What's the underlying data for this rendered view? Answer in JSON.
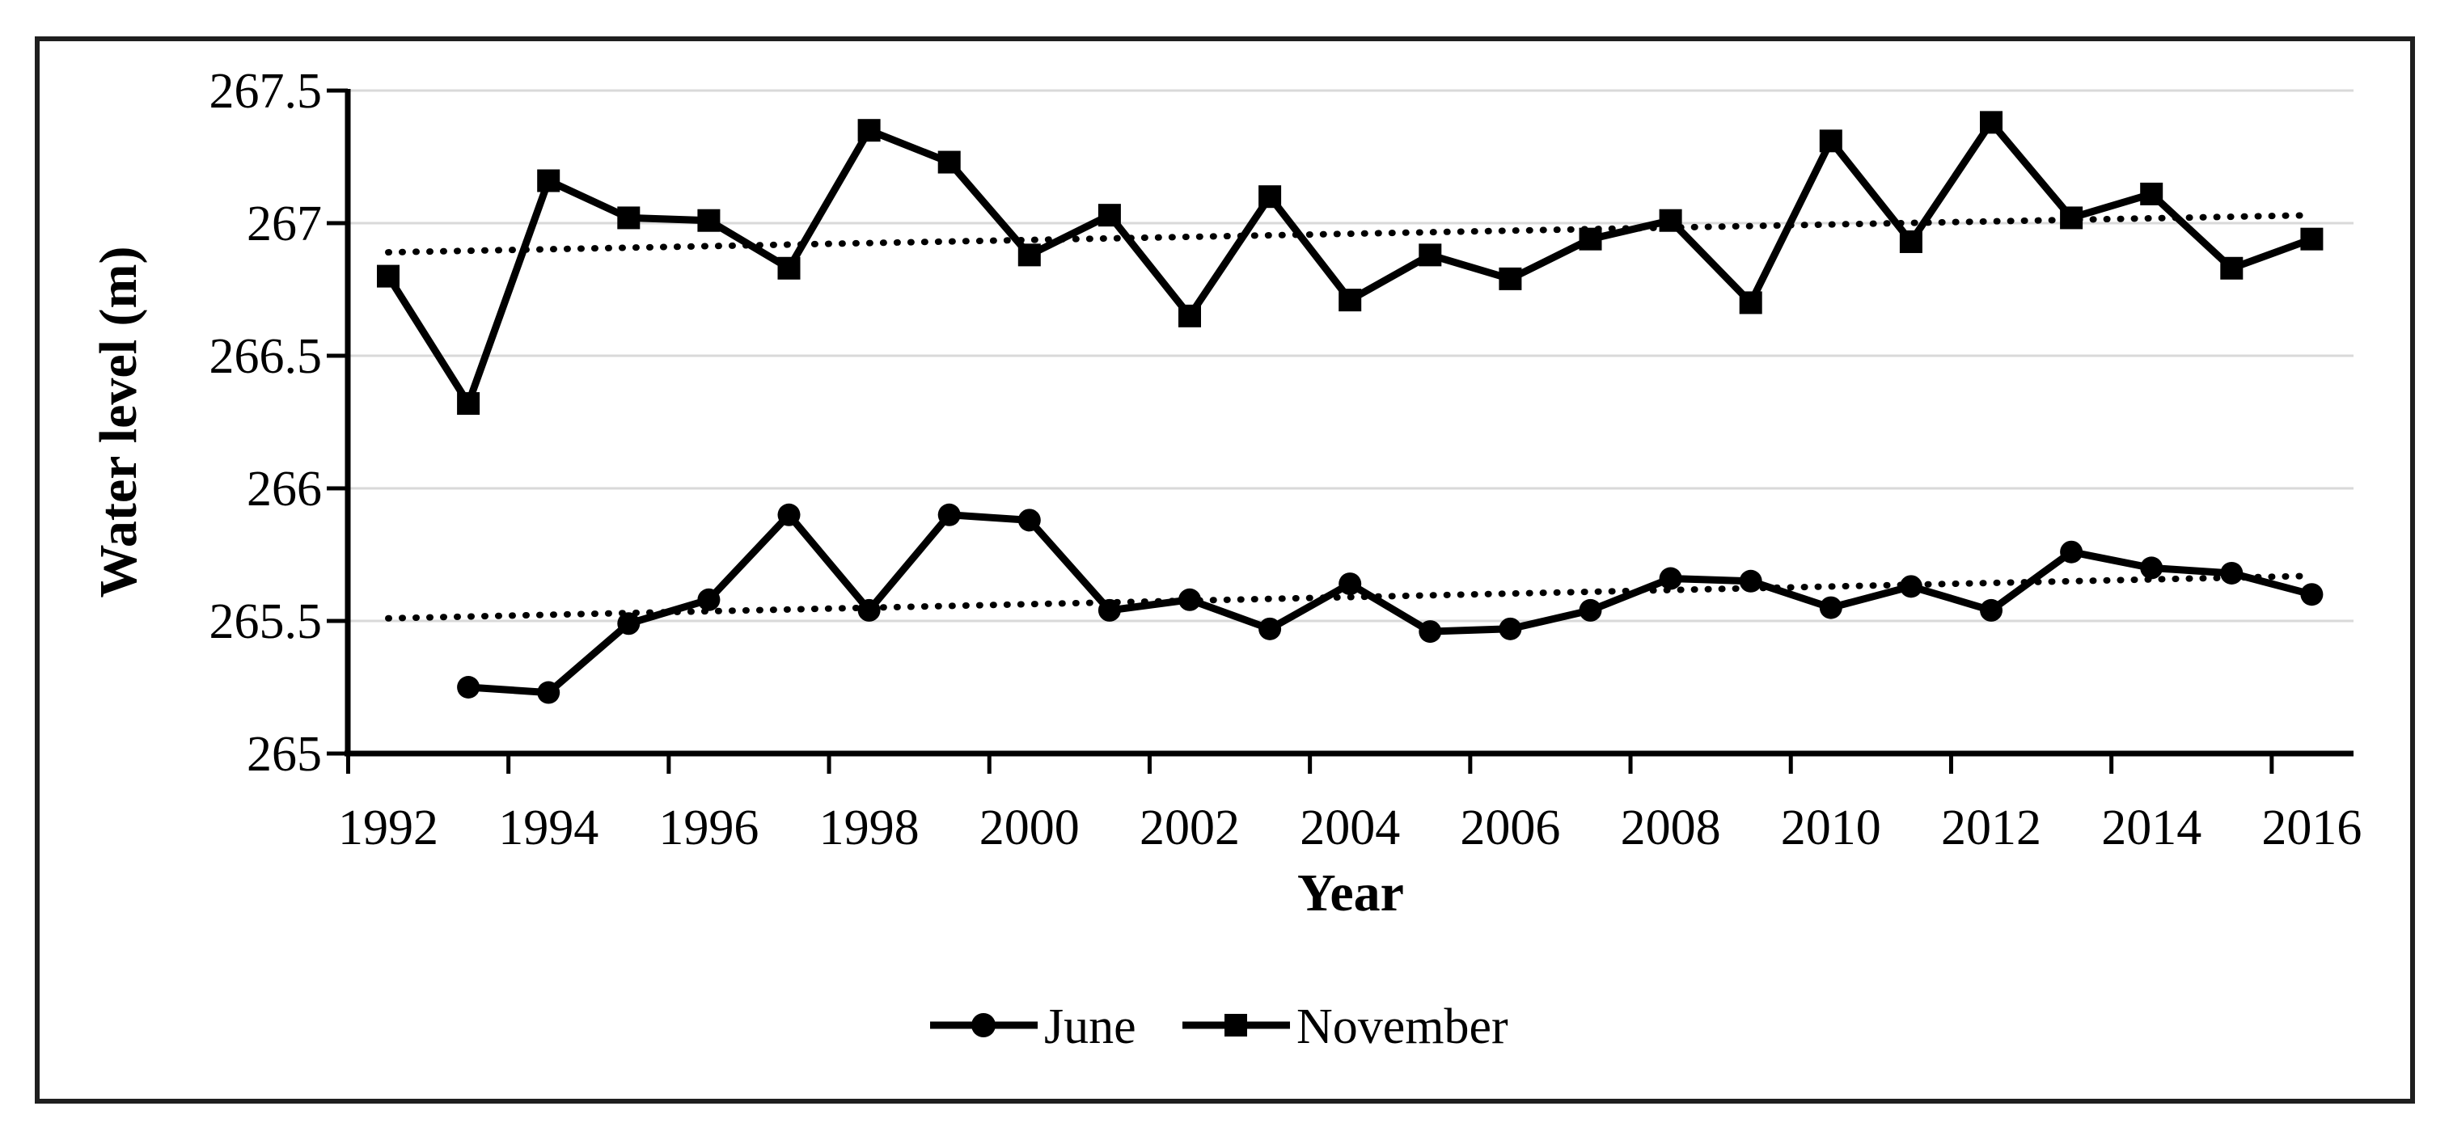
{
  "figure": {
    "background_color": "#ffffff",
    "frame_color": "#1f1f1f",
    "line_color": "#000000",
    "gridline_color": "#d9d9d9"
  },
  "chart_data": {
    "type": "line",
    "title": "",
    "xlabel": "Year",
    "ylabel": "Water level (m)",
    "grid": "horizontal",
    "legend_position": "bottom center",
    "x": [
      1992,
      1993,
      1994,
      1995,
      1996,
      1997,
      1998,
      1999,
      2000,
      2001,
      2002,
      2003,
      2004,
      2005,
      2006,
      2007,
      2008,
      2009,
      2010,
      2011,
      2012,
      2013,
      2014,
      2015,
      2016
    ],
    "x_tick_labels": [
      "1992",
      "1994",
      "1996",
      "1998",
      "2000",
      "2002",
      "2004",
      "2006",
      "2008",
      "2010",
      "2012",
      "2014",
      "2016"
    ],
    "x_label_years": [
      1992,
      1994,
      1996,
      1998,
      2000,
      2002,
      2004,
      2006,
      2008,
      2010,
      2012,
      2014,
      2016
    ],
    "ylim": [
      265,
      267.5
    ],
    "y_ticks": [
      267.5,
      267,
      266.5,
      266,
      265.5,
      265
    ],
    "y_tick_labels": [
      "267.5",
      "267",
      "266.5",
      "266",
      "265.5",
      "265"
    ],
    "series": [
      {
        "name": "June",
        "marker": "circle",
        "color": "#000000",
        "values": [
          null,
          265.25,
          265.23,
          265.49,
          265.58,
          265.9,
          265.54,
          265.9,
          265.88,
          265.54,
          265.58,
          265.47,
          265.64,
          265.46,
          265.47,
          265.54,
          265.66,
          265.65,
          265.55,
          265.63,
          265.54,
          265.76,
          265.7,
          265.68,
          265.6
        ]
      },
      {
        "name": "November",
        "marker": "square",
        "color": "#000000",
        "values": [
          266.8,
          266.32,
          267.16,
          267.02,
          267.01,
          266.83,
          267.35,
          267.23,
          266.88,
          267.03,
          266.65,
          267.1,
          266.71,
          266.88,
          266.79,
          266.94,
          267.01,
          266.7,
          267.31,
          266.93,
          267.38,
          267.02,
          267.11,
          266.83,
          266.94
        ]
      }
    ],
    "trendlines": [
      {
        "series": "June",
        "style": "dotted",
        "x_start": 1992,
        "y_start": 265.51,
        "x_end": 2016,
        "y_end": 265.67
      },
      {
        "series": "November",
        "style": "dotted",
        "x_start": 1992,
        "y_start": 266.89,
        "x_end": 2016,
        "y_end": 267.03
      }
    ],
    "legend": [
      {
        "label": "June",
        "marker": "circle"
      },
      {
        "label": "November",
        "marker": "square"
      }
    ]
  }
}
